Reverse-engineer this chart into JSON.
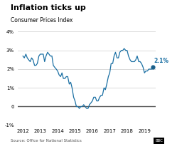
{
  "title": "Inflation ticks up",
  "subtitle": "Consumer Prices Index",
  "source": "Source: Office for National Statistics",
  "annotation": "2.1%",
  "line_color": "#1a6fa3",
  "annotation_color": "#1a6fa3",
  "dot_color": "#1a5f8a",
  "background_color": "#ffffff",
  "ylim": [
    -1.0,
    4.0
  ],
  "yticks": [
    -1,
    0,
    1,
    2,
    3,
    4
  ],
  "ytick_labels": [
    "-1%",
    "0",
    "1%",
    "2%",
    "3%",
    "4%"
  ],
  "xlim_start": 2011.7,
  "xlim_end": 2019.65,
  "xticks": [
    2012,
    2013,
    2014,
    2015,
    2016,
    2017,
    2018,
    2019
  ],
  "data": [
    [
      2012.0,
      2.7
    ],
    [
      2012.08,
      2.6
    ],
    [
      2012.17,
      2.8
    ],
    [
      2012.25,
      2.6
    ],
    [
      2012.33,
      2.5
    ],
    [
      2012.42,
      2.4
    ],
    [
      2012.5,
      2.6
    ],
    [
      2012.58,
      2.5
    ],
    [
      2012.67,
      2.2
    ],
    [
      2012.75,
      2.2
    ],
    [
      2012.83,
      2.3
    ],
    [
      2012.92,
      2.7
    ],
    [
      2013.0,
      2.8
    ],
    [
      2013.08,
      2.8
    ],
    [
      2013.17,
      2.8
    ],
    [
      2013.25,
      2.4
    ],
    [
      2013.33,
      2.7
    ],
    [
      2013.42,
      2.9
    ],
    [
      2013.5,
      2.8
    ],
    [
      2013.58,
      2.7
    ],
    [
      2013.67,
      2.7
    ],
    [
      2013.75,
      2.2
    ],
    [
      2013.83,
      2.1
    ],
    [
      2013.92,
      2.0
    ],
    [
      2014.0,
      1.9
    ],
    [
      2014.08,
      1.7
    ],
    [
      2014.17,
      1.6
    ],
    [
      2014.25,
      1.8
    ],
    [
      2014.33,
      1.5
    ],
    [
      2014.42,
      1.5
    ],
    [
      2014.5,
      1.6
    ],
    [
      2014.58,
      1.6
    ],
    [
      2014.67,
      1.2
    ],
    [
      2014.75,
      1.3
    ],
    [
      2014.83,
      1.0
    ],
    [
      2014.92,
      0.5
    ],
    [
      2015.0,
      0.3
    ],
    [
      2015.08,
      0.0
    ],
    [
      2015.17,
      0.0
    ],
    [
      2015.25,
      -0.1
    ],
    [
      2015.33,
      0.0
    ],
    [
      2015.42,
      0.0
    ],
    [
      2015.5,
      0.1
    ],
    [
      2015.58,
      0.0
    ],
    [
      2015.67,
      -0.1
    ],
    [
      2015.75,
      -0.1
    ],
    [
      2015.83,
      0.1
    ],
    [
      2015.92,
      0.2
    ],
    [
      2016.0,
      0.3
    ],
    [
      2016.08,
      0.5
    ],
    [
      2016.17,
      0.5
    ],
    [
      2016.25,
      0.3
    ],
    [
      2016.33,
      0.3
    ],
    [
      2016.42,
      0.5
    ],
    [
      2016.5,
      0.6
    ],
    [
      2016.58,
      0.6
    ],
    [
      2016.67,
      1.0
    ],
    [
      2016.75,
      0.9
    ],
    [
      2016.83,
      1.2
    ],
    [
      2016.92,
      1.6
    ],
    [
      2017.0,
      1.8
    ],
    [
      2017.08,
      2.3
    ],
    [
      2017.17,
      2.3
    ],
    [
      2017.25,
      2.7
    ],
    [
      2017.33,
      2.9
    ],
    [
      2017.42,
      2.6
    ],
    [
      2017.5,
      2.6
    ],
    [
      2017.58,
      2.9
    ],
    [
      2017.67,
      3.0
    ],
    [
      2017.75,
      3.0
    ],
    [
      2017.83,
      3.1
    ],
    [
      2017.92,
      3.0
    ],
    [
      2018.0,
      3.0
    ],
    [
      2018.08,
      2.7
    ],
    [
      2018.17,
      2.5
    ],
    [
      2018.25,
      2.4
    ],
    [
      2018.33,
      2.4
    ],
    [
      2018.42,
      2.4
    ],
    [
      2018.5,
      2.5
    ],
    [
      2018.58,
      2.7
    ],
    [
      2018.67,
      2.4
    ],
    [
      2018.75,
      2.4
    ],
    [
      2018.83,
      2.3
    ],
    [
      2018.92,
      2.1
    ],
    [
      2019.0,
      1.8
    ],
    [
      2019.08,
      1.9
    ],
    [
      2019.17,
      1.9
    ],
    [
      2019.25,
      2.0
    ],
    [
      2019.33,
      2.0
    ],
    [
      2019.42,
      2.0
    ],
    [
      2019.5,
      2.1
    ]
  ]
}
